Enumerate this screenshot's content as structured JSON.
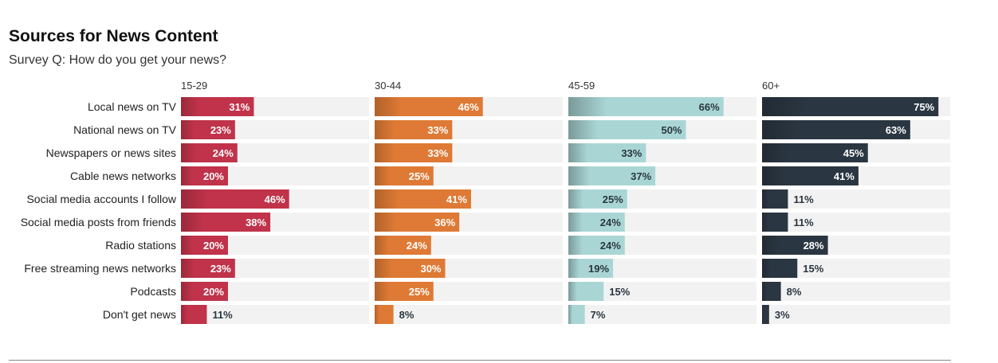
{
  "title": "Sources for News Content",
  "subtitle": "Survey Q: How do you get your news?",
  "chart_data": {
    "type": "bar",
    "orientation": "horizontal",
    "layout": "small-multiples",
    "categories": [
      "Local news on TV",
      "National news on TV",
      "Newspapers or news sites",
      "Cable news networks",
      "Social media accounts I follow",
      "Social media posts from friends",
      "Radio stations",
      "Free streaming news networks",
      "Podcasts",
      "Don't get news"
    ],
    "series": [
      {
        "name": "15-29",
        "color": "#c0334a",
        "values": [
          31,
          23,
          24,
          20,
          46,
          38,
          20,
          23,
          20,
          11
        ]
      },
      {
        "name": "30-44",
        "color": "#de7a35",
        "values": [
          46,
          33,
          33,
          25,
          41,
          36,
          24,
          30,
          25,
          8
        ]
      },
      {
        "name": "45-59",
        "color": "#a9d6d5",
        "values": [
          66,
          50,
          33,
          37,
          25,
          24,
          24,
          19,
          15,
          7
        ]
      },
      {
        "name": "60+",
        "color": "#2a3641",
        "values": [
          75,
          63,
          45,
          41,
          11,
          11,
          28,
          15,
          8,
          3
        ]
      }
    ],
    "value_suffix": "%",
    "xlim": [
      0,
      80
    ],
    "grid": false,
    "track_color": "#f2f2f2"
  }
}
